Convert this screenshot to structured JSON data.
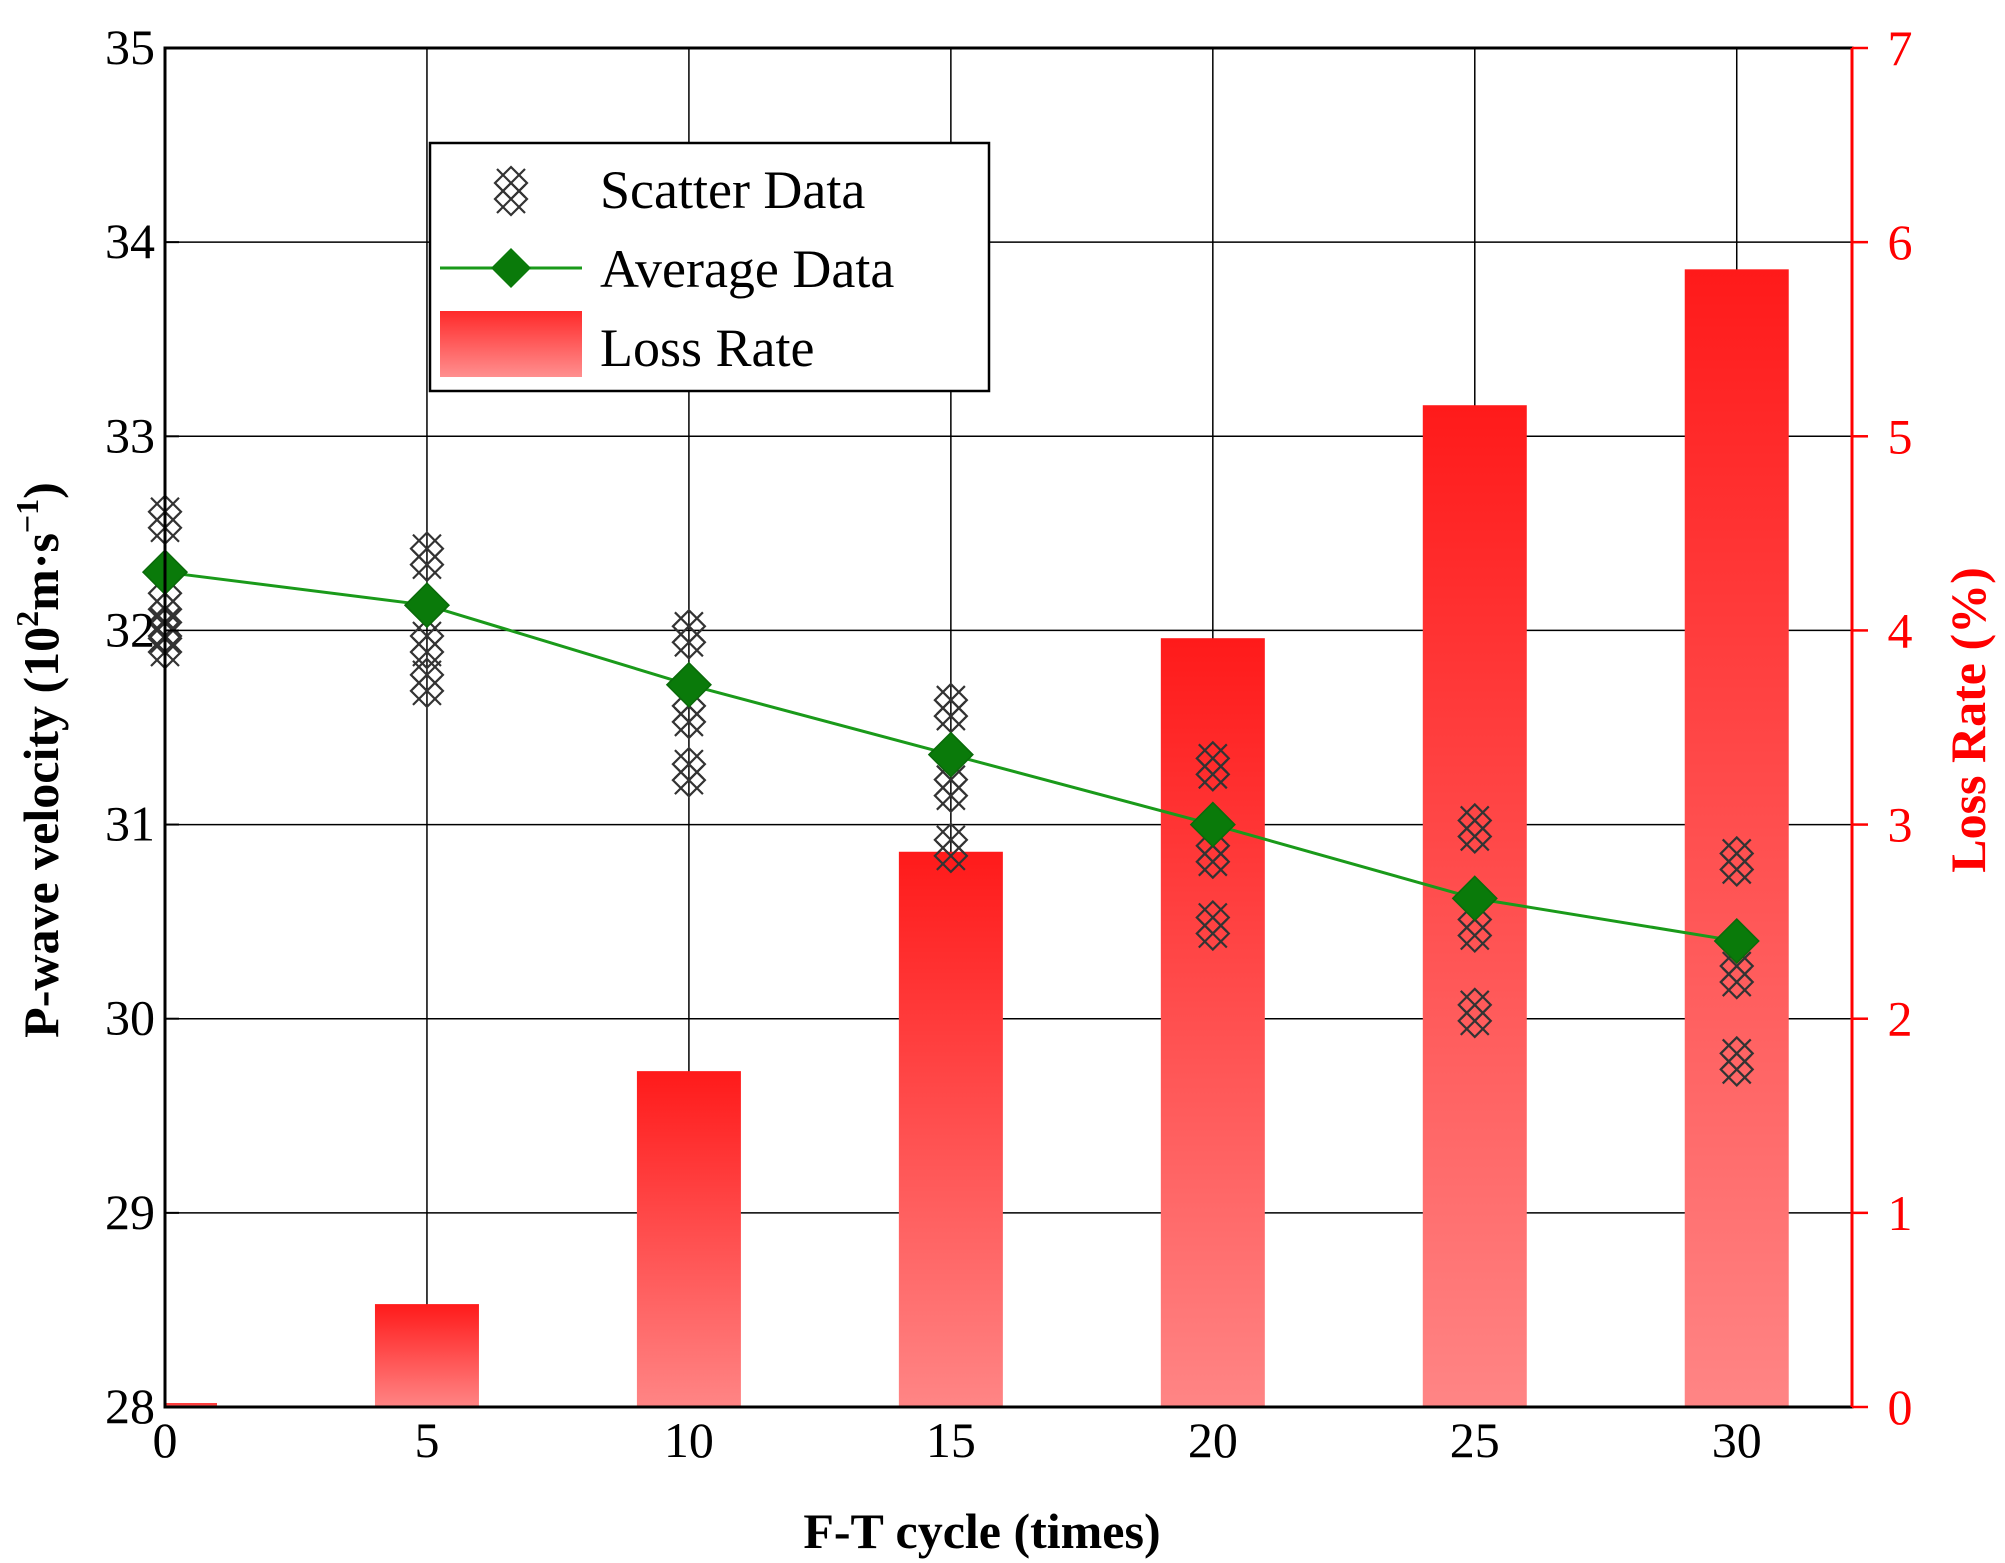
{
  "chart_data": {
    "type": "bar+line+scatter",
    "xlabel": "F-T cycle (times)",
    "ylabel_left": "P-wave velocity (10",
    "ylabel_left_sup1": "2",
    "ylabel_left_mid": "m·s",
    "ylabel_left_sup2": "−1",
    "ylabel_left_end": ")",
    "ylabel_right": "Loss Rate (%)",
    "x_ticks": [
      "0",
      "5",
      "10",
      "15",
      "20",
      "25",
      "30"
    ],
    "y_left_ticks": [
      "28",
      "29",
      "30",
      "31",
      "32",
      "33",
      "34",
      "35"
    ],
    "y_right_ticks": [
      "0",
      "1",
      "2",
      "3",
      "4",
      "5",
      "6",
      "7"
    ],
    "xlim": [
      0,
      32.2
    ],
    "ylim_left": [
      28,
      35
    ],
    "ylim_right": [
      0,
      7
    ],
    "legend": {
      "scatter_label": "Scatter Data",
      "average_label": "Average Data",
      "loss_label": "Loss Rate"
    },
    "loss_rate": {
      "x": [
        0,
        5,
        10,
        15,
        20,
        25,
        30
      ],
      "values": [
        0.02,
        0.53,
        1.73,
        2.86,
        3.96,
        5.16,
        5.86
      ]
    },
    "average": {
      "x": [
        0,
        5,
        10,
        15,
        20,
        25,
        30
      ],
      "values": [
        32.3,
        32.13,
        31.72,
        31.36,
        31.0,
        30.62,
        30.4
      ]
    },
    "scatter": [
      {
        "x": 0,
        "values": [
          32.57,
          32.15,
          32.0,
          31.93
        ]
      },
      {
        "x": 5,
        "values": [
          32.38,
          31.93,
          31.73
        ]
      },
      {
        "x": 10,
        "values": [
          31.98,
          31.57,
          31.27
        ]
      },
      {
        "x": 15,
        "values": [
          31.6,
          31.19,
          30.88
        ]
      },
      {
        "x": 20,
        "values": [
          31.3,
          30.85,
          30.48
        ]
      },
      {
        "x": 25,
        "values": [
          30.98,
          30.47,
          30.03
        ]
      },
      {
        "x": 30,
        "values": [
          30.81,
          30.23,
          29.78
        ]
      }
    ],
    "colors": {
      "bar_top": "#ff1a1a",
      "bar_bottom": "#ff8585",
      "line": "#1a9a1a",
      "marker": "#0a7a0a",
      "right_axis": "#ff0000"
    },
    "grid": true
  }
}
